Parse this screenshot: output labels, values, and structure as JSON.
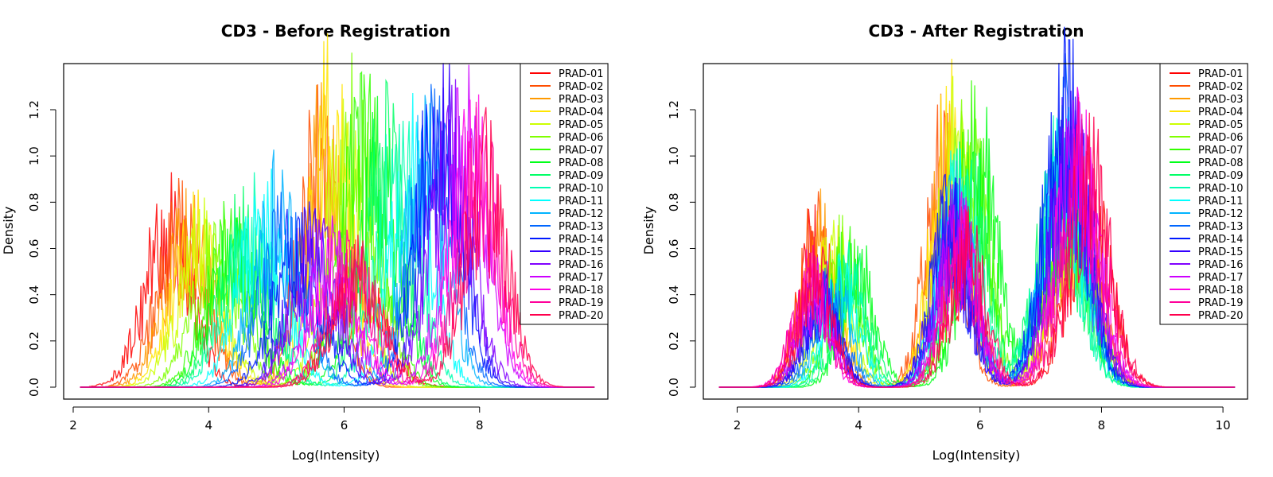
{
  "chart_data": [
    {
      "type": "line",
      "title": "CD3 - Before Registration",
      "xlabel": "Log(Intensity)",
      "ylabel": "Density",
      "xlim": [
        2.0,
        9.8
      ],
      "ylim": [
        0,
        1.4
      ],
      "xticks": [
        "2",
        "4",
        "6",
        "8"
      ],
      "xtick_values": [
        2,
        4,
        6,
        8
      ],
      "yticks": [
        "0.0",
        "0.2",
        "0.4",
        "0.6",
        "0.8",
        "1.0",
        "1.2"
      ],
      "ytick_values": [
        0,
        0.2,
        0.4,
        0.6,
        0.8,
        1.0,
        1.2
      ],
      "legend_position": "top-right",
      "series": [
        {
          "name": "PRAD-01",
          "color": "#FF0000",
          "peaks": [
            [
              3.4,
              0.66,
              0.35
            ],
            [
              6.2,
              0.45,
              0.4
            ]
          ]
        },
        {
          "name": "PRAD-02",
          "color": "#FF4D00",
          "peaks": [
            [
              3.6,
              0.64,
              0.35
            ],
            [
              5.6,
              0.95,
              0.3
            ]
          ]
        },
        {
          "name": "PRAD-03",
          "color": "#FF9900",
          "peaks": [
            [
              3.7,
              0.62,
              0.35
            ],
            [
              5.7,
              0.98,
              0.3
            ]
          ]
        },
        {
          "name": "PRAD-04",
          "color": "#FFE500",
          "peaks": [
            [
              3.8,
              0.6,
              0.35
            ],
            [
              5.8,
              1.1,
              0.3
            ]
          ]
        },
        {
          "name": "PRAD-05",
          "color": "#CCFF00",
          "peaks": [
            [
              3.9,
              0.58,
              0.35
            ],
            [
              6.0,
              0.95,
              0.3
            ]
          ]
        },
        {
          "name": "PRAD-06",
          "color": "#80FF00",
          "peaks": [
            [
              4.1,
              0.55,
              0.35
            ],
            [
              6.2,
              1.05,
              0.32
            ]
          ]
        },
        {
          "name": "PRAD-07",
          "color": "#33FF00",
          "peaks": [
            [
              4.3,
              0.57,
              0.35
            ],
            [
              6.3,
              1.0,
              0.32
            ]
          ]
        },
        {
          "name": "PRAD-08",
          "color": "#00FF19",
          "peaks": [
            [
              4.4,
              0.6,
              0.35
            ],
            [
              6.5,
              0.95,
              0.32
            ]
          ]
        },
        {
          "name": "PRAD-09",
          "color": "#00FF66",
          "peaks": [
            [
              4.5,
              0.65,
              0.35
            ],
            [
              6.6,
              0.92,
              0.32
            ]
          ]
        },
        {
          "name": "PRAD-10",
          "color": "#00FFB2",
          "peaks": [
            [
              4.6,
              0.68,
              0.35
            ],
            [
              6.8,
              0.9,
              0.32
            ]
          ]
        },
        {
          "name": "PRAD-11",
          "color": "#00FFFF",
          "peaks": [
            [
              4.8,
              0.7,
              0.35
            ],
            [
              7.0,
              0.88,
              0.32
            ]
          ]
        },
        {
          "name": "PRAD-12",
          "color": "#00B3FF",
          "peaks": [
            [
              5.0,
              0.72,
              0.35
            ],
            [
              7.2,
              0.9,
              0.32
            ]
          ]
        },
        {
          "name": "PRAD-13",
          "color": "#0066FF",
          "peaks": [
            [
              5.1,
              0.62,
              0.35
            ],
            [
              7.3,
              0.95,
              0.32
            ]
          ]
        },
        {
          "name": "PRAD-14",
          "color": "#0019FF",
          "peaks": [
            [
              5.3,
              0.58,
              0.35
            ],
            [
              7.4,
              1.12,
              0.32
            ]
          ]
        },
        {
          "name": "PRAD-15",
          "color": "#3300FF",
          "peaks": [
            [
              5.5,
              0.56,
              0.35
            ],
            [
              7.5,
              0.98,
              0.32
            ]
          ]
        },
        {
          "name": "PRAD-16",
          "color": "#8000FF",
          "peaks": [
            [
              5.6,
              0.55,
              0.35
            ],
            [
              7.6,
              0.96,
              0.32
            ]
          ]
        },
        {
          "name": "PRAD-17",
          "color": "#CC00FF",
          "peaks": [
            [
              5.8,
              0.52,
              0.35
            ],
            [
              7.8,
              0.98,
              0.32
            ]
          ]
        },
        {
          "name": "PRAD-18",
          "color": "#FF00E6",
          "peaks": [
            [
              5.9,
              0.5,
              0.35
            ],
            [
              7.9,
              0.92,
              0.32
            ]
          ]
        },
        {
          "name": "PRAD-19",
          "color": "#FF0099",
          "peaks": [
            [
              6.1,
              0.48,
              0.35
            ],
            [
              8.0,
              0.88,
              0.32
            ]
          ]
        },
        {
          "name": "PRAD-20",
          "color": "#FF004D",
          "peaks": [
            [
              6.2,
              0.46,
              0.35
            ],
            [
              8.1,
              0.85,
              0.32
            ]
          ]
        }
      ]
    },
    {
      "type": "line",
      "title": "CD3 - After Registration",
      "xlabel": "Log(Intensity)",
      "ylabel": "Density",
      "xlim": [
        1.6,
        10.3
      ],
      "ylim": [
        0,
        1.4
      ],
      "xticks": [
        "2",
        "4",
        "6",
        "8",
        "10"
      ],
      "xtick_values": [
        2,
        4,
        6,
        8,
        10
      ],
      "yticks": [
        "0.0",
        "0.2",
        "0.4",
        "0.6",
        "0.8",
        "1.0",
        "1.2"
      ],
      "ytick_values": [
        0,
        0.2,
        0.4,
        0.6,
        0.8,
        1.0,
        1.2
      ],
      "legend_position": "top-right",
      "series": [
        {
          "name": "PRAD-01",
          "color": "#FF0000",
          "peaks": [
            [
              3.3,
              0.62,
              0.28
            ],
            [
              5.7,
              0.5,
              0.3
            ],
            [
              7.8,
              0.75,
              0.35
            ]
          ]
        },
        {
          "name": "PRAD-02",
          "color": "#FF4D00",
          "peaks": [
            [
              3.3,
              0.62,
              0.28
            ],
            [
              5.4,
              0.9,
              0.3
            ],
            [
              7.6,
              0.7,
              0.35
            ]
          ]
        },
        {
          "name": "PRAD-03",
          "color": "#FF9900",
          "peaks": [
            [
              3.4,
              0.6,
              0.28
            ],
            [
              5.5,
              0.95,
              0.3
            ],
            [
              7.6,
              0.72,
              0.35
            ]
          ]
        },
        {
          "name": "PRAD-04",
          "color": "#FFE500",
          "peaks": [
            [
              3.5,
              0.58,
              0.28
            ],
            [
              5.5,
              1.0,
              0.3
            ],
            [
              7.5,
              0.74,
              0.35
            ]
          ]
        },
        {
          "name": "PRAD-05",
          "color": "#CCFF00",
          "peaks": [
            [
              3.6,
              0.55,
              0.28
            ],
            [
              5.6,
              0.95,
              0.3
            ],
            [
              7.5,
              0.76,
              0.35
            ]
          ]
        },
        {
          "name": "PRAD-06",
          "color": "#80FF00",
          "peaks": [
            [
              3.7,
              0.52,
              0.28
            ],
            [
              5.8,
              1.05,
              0.3
            ],
            [
              7.5,
              0.78,
              0.35
            ]
          ]
        },
        {
          "name": "PRAD-07",
          "color": "#33FF00",
          "peaks": [
            [
              3.8,
              0.5,
              0.28
            ],
            [
              5.9,
              0.95,
              0.3
            ],
            [
              7.4,
              0.8,
              0.35
            ]
          ]
        },
        {
          "name": "PRAD-08",
          "color": "#00FF19",
          "peaks": [
            [
              4.0,
              0.48,
              0.28
            ],
            [
              6.0,
              0.9,
              0.3
            ],
            [
              7.4,
              0.82,
              0.35
            ]
          ]
        },
        {
          "name": "PRAD-09",
          "color": "#00FF66",
          "peaks": [
            [
              3.9,
              0.46,
              0.28
            ],
            [
              5.8,
              0.85,
              0.3
            ],
            [
              7.3,
              0.84,
              0.35
            ]
          ]
        },
        {
          "name": "PRAD-10",
          "color": "#00FFB2",
          "peaks": [
            [
              3.8,
              0.44,
              0.28
            ],
            [
              5.7,
              0.8,
              0.3
            ],
            [
              7.3,
              0.86,
              0.35
            ]
          ]
        },
        {
          "name": "PRAD-11",
          "color": "#00FFFF",
          "peaks": [
            [
              3.7,
              0.42,
              0.28
            ],
            [
              5.6,
              0.75,
              0.3
            ],
            [
              7.4,
              0.88,
              0.35
            ]
          ]
        },
        {
          "name": "PRAD-12",
          "color": "#00B3FF",
          "peaks": [
            [
              3.6,
              0.4,
              0.28
            ],
            [
              5.6,
              0.72,
              0.3
            ],
            [
              7.4,
              0.9,
              0.35
            ]
          ]
        },
        {
          "name": "PRAD-13",
          "color": "#0066FF",
          "peaks": [
            [
              3.5,
              0.38,
              0.28
            ],
            [
              5.6,
              0.7,
              0.3
            ],
            [
              7.4,
              1.0,
              0.35
            ]
          ]
        },
        {
          "name": "PRAD-14",
          "color": "#0019FF",
          "peaks": [
            [
              3.4,
              0.36,
              0.28
            ],
            [
              5.5,
              0.68,
              0.3
            ],
            [
              7.4,
              1.12,
              0.35
            ]
          ]
        },
        {
          "name": "PRAD-15",
          "color": "#3300FF",
          "peaks": [
            [
              3.4,
              0.36,
              0.28
            ],
            [
              5.5,
              0.66,
              0.3
            ],
            [
              7.5,
              0.95,
              0.35
            ]
          ]
        },
        {
          "name": "PRAD-16",
          "color": "#8000FF",
          "peaks": [
            [
              3.3,
              0.38,
              0.28
            ],
            [
              5.6,
              0.64,
              0.3
            ],
            [
              7.5,
              0.92,
              0.35
            ]
          ]
        },
        {
          "name": "PRAD-17",
          "color": "#CC00FF",
          "peaks": [
            [
              3.3,
              0.4,
              0.28
            ],
            [
              5.6,
              0.62,
              0.3
            ],
            [
              7.6,
              0.94,
              0.35
            ]
          ]
        },
        {
          "name": "PRAD-18",
          "color": "#FF00E6",
          "peaks": [
            [
              3.2,
              0.42,
              0.28
            ],
            [
              5.7,
              0.6,
              0.3
            ],
            [
              7.6,
              0.92,
              0.35
            ]
          ]
        },
        {
          "name": "PRAD-19",
          "color": "#FF0099",
          "peaks": [
            [
              3.2,
              0.44,
              0.28
            ],
            [
              5.7,
              0.58,
              0.3
            ],
            [
              7.7,
              0.9,
              0.35
            ]
          ]
        },
        {
          "name": "PRAD-20",
          "color": "#FF004D",
          "peaks": [
            [
              3.3,
              0.46,
              0.28
            ],
            [
              5.8,
              0.56,
              0.3
            ],
            [
              7.8,
              0.88,
              0.35
            ]
          ]
        }
      ]
    }
  ]
}
